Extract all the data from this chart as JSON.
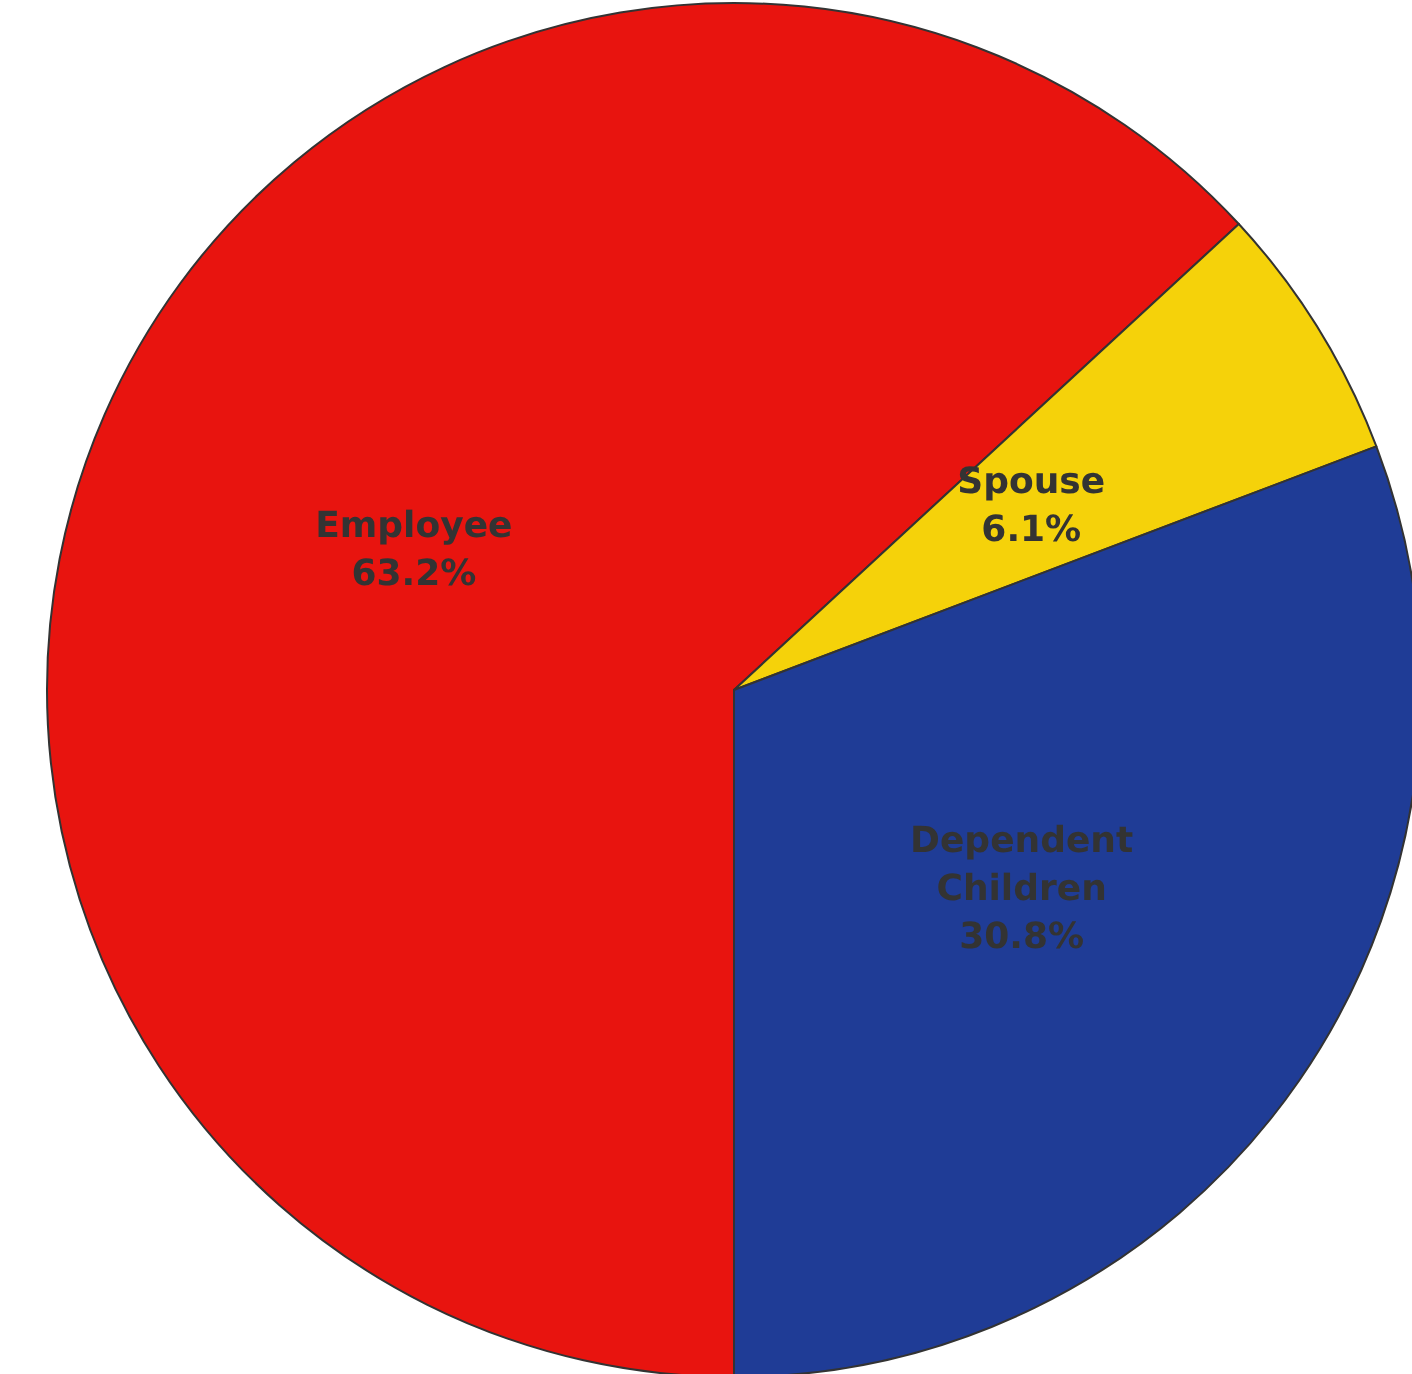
{
  "chart_data": {
    "type": "pie",
    "categories": [
      "Employee",
      "Spouse",
      "Dependent Children"
    ],
    "values": [
      63.2,
      6.1,
      30.8
    ],
    "value_labels": [
      "63.2%",
      "6.1%",
      "30.8%"
    ],
    "colors": [
      "#e8140f",
      "#f5d20a",
      "#1f3c96"
    ]
  }
}
